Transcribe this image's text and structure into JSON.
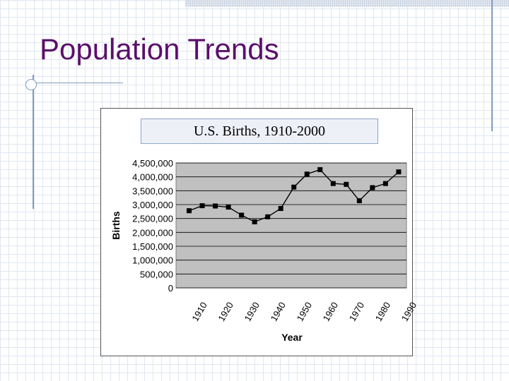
{
  "slide": {
    "title": "Population Trends"
  },
  "colors": {
    "title": "#5a0f6b",
    "decor_lines": "#7f9bbd",
    "plot_area": "#c0c0c0",
    "series": "#000000"
  },
  "chart_data": {
    "type": "line",
    "title": "U.S. Births, 1910-2000",
    "xlabel": "Year",
    "ylabel": "Births",
    "ylim": [
      0,
      4500000
    ],
    "y_ticks": [
      0,
      500000,
      1000000,
      1500000,
      2000000,
      2500000,
      3000000,
      3500000,
      4000000,
      4500000
    ],
    "y_tick_labels": [
      "0",
      "500,000",
      "1,000,000",
      "1,500,000",
      "2,000,000",
      "2,500,000",
      "3,000,000",
      "3,500,000",
      "4,000,000",
      "4,500,000"
    ],
    "x_tick_labels": [
      "1910",
      "1920",
      "1930",
      "1940",
      "1950",
      "1960",
      "1970",
      "1980",
      "1990"
    ],
    "grid": "horizontal",
    "legend": "none",
    "series": [
      {
        "x": [
          1910,
          1915,
          1920,
          1925,
          1930,
          1935,
          1940,
          1945,
          1950,
          1955,
          1960,
          1965,
          1970,
          1975,
          1980,
          1985,
          1990
        ],
        "values": [
          2780000,
          2960000,
          2950000,
          2910000,
          2620000,
          2380000,
          2560000,
          2860000,
          3630000,
          4100000,
          4260000,
          3760000,
          3730000,
          3140000,
          3610000,
          3760000,
          4180000
        ]
      }
    ]
  }
}
